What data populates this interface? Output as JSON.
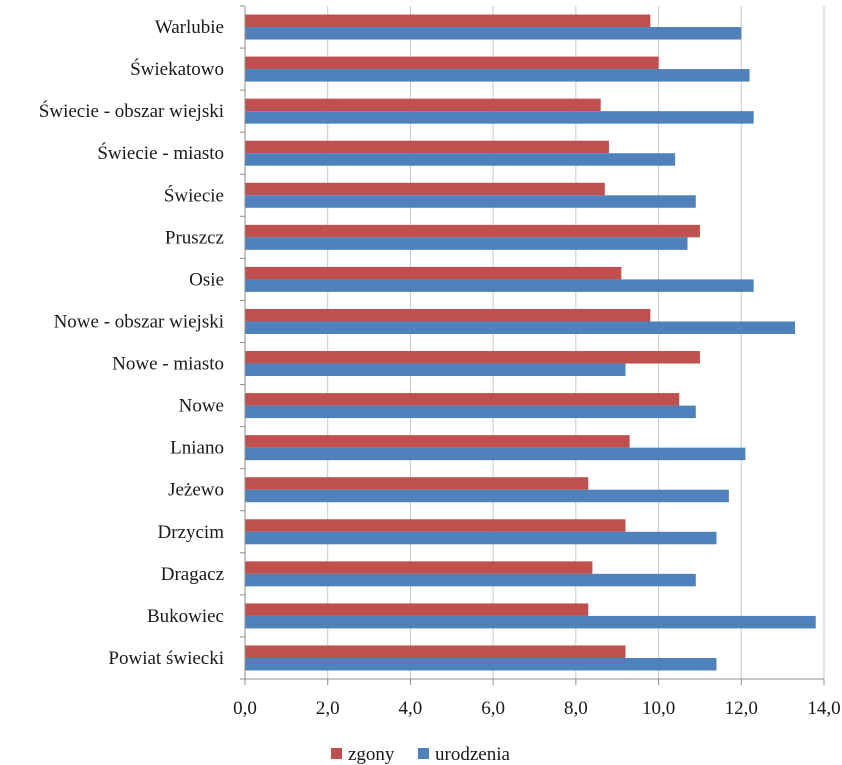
{
  "chart_data": {
    "type": "bar",
    "orientation": "horizontal",
    "categories": [
      "Warlubie",
      "Świekatowo",
      "Świecie - obszar wiejski",
      "Świecie - miasto",
      "Świecie",
      "Pruszcz",
      "Osie",
      "Nowe - obszar wiejski",
      "Nowe - miasto",
      "Nowe",
      "Lniano",
      "Jeżewo",
      "Drzycim",
      "Dragacz",
      "Bukowiec",
      "Powiat świecki"
    ],
    "series": [
      {
        "name": "zgony",
        "color": "#c0504d",
        "values": [
          9.8,
          10.0,
          8.6,
          8.8,
          8.7,
          11.0,
          9.1,
          9.8,
          11.0,
          10.5,
          9.3,
          8.3,
          9.2,
          8.4,
          8.3,
          9.2
        ]
      },
      {
        "name": "urodzenia",
        "color": "#4f81bd",
        "values": [
          12.0,
          12.2,
          12.3,
          10.4,
          10.9,
          10.7,
          12.3,
          13.3,
          9.2,
          10.9,
          12.1,
          11.7,
          11.4,
          10.9,
          13.8,
          11.4
        ]
      }
    ],
    "xlim": [
      0,
      14
    ],
    "xticks": [
      "0,0",
      "2,0",
      "4,0",
      "6,0",
      "8,0",
      "10,0",
      "12,0",
      "14,0"
    ],
    "grid": "vertical",
    "legend_position": "bottom",
    "title": "",
    "xlabel": "",
    "ylabel": ""
  }
}
